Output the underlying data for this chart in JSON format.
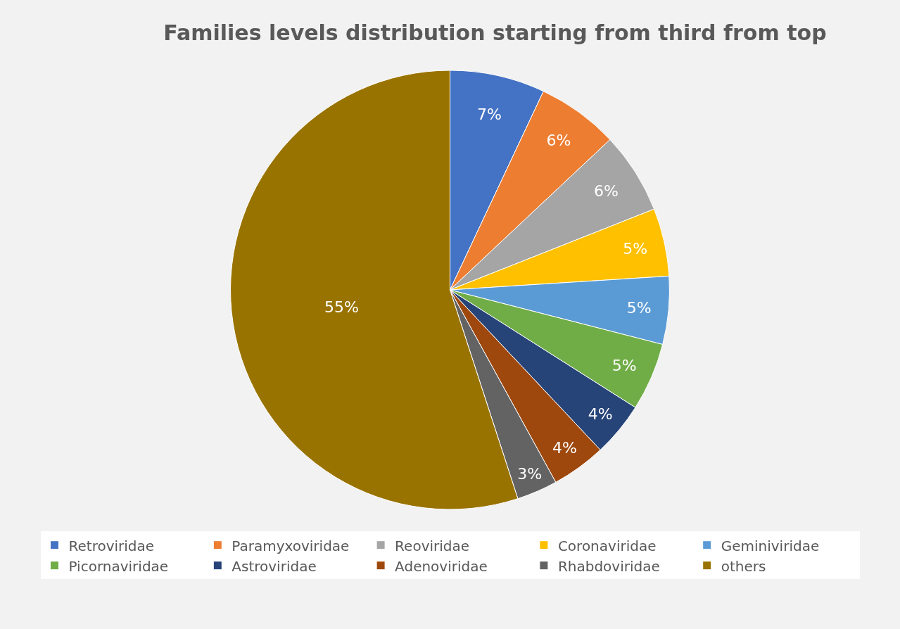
{
  "chart_data": {
    "type": "pie",
    "title": "Families levels distribution starting from third from top",
    "categories": [
      "Retroviridae",
      "Paramyxoviridae",
      "Reoviridae",
      "Coronaviridae",
      "Geminiviridae",
      "Picornaviridae",
      "Astroviridae",
      "Adenoviridae",
      "Rhabdoviridae",
      "others"
    ],
    "values": [
      7,
      6,
      6,
      5,
      5,
      5,
      4,
      4,
      3,
      55
    ],
    "value_labels": [
      "7%",
      "6%",
      "6%",
      "5%",
      "5%",
      "5%",
      "4%",
      "4%",
      "3%",
      "55%"
    ],
    "colors": [
      "#4472c4",
      "#ed7d31",
      "#a5a5a5",
      "#ffc000",
      "#5b9bd5",
      "#70ad47",
      "#264478",
      "#9e480e",
      "#636363",
      "#997300"
    ],
    "legend": "bottom"
  }
}
